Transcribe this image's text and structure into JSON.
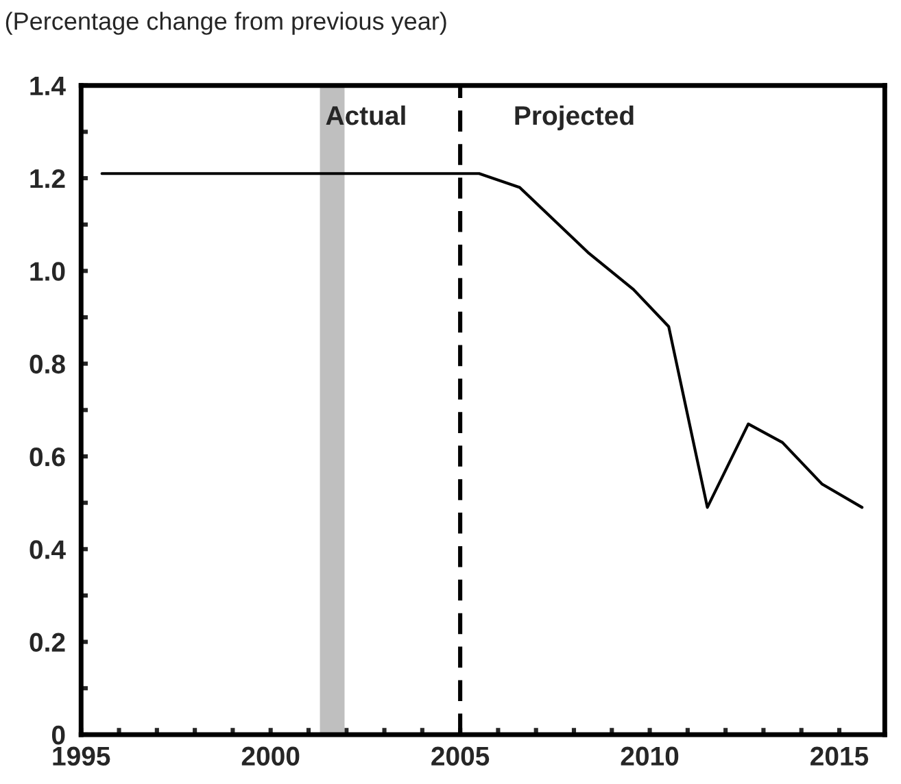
{
  "chart_data": {
    "type": "line",
    "title": "(Percentage change from previous year)",
    "x": [
      1995.55,
      2005.5,
      2006.57,
      2008.37,
      2009.57,
      2010.5,
      2011.52,
      2012.6,
      2013.5,
      2014.55,
      2015.6
    ],
    "series": [
      {
        "color": "#000000",
        "values": [
          1.21,
          1.21,
          1.18,
          1.04,
          0.96,
          0.88,
          0.49,
          0.67,
          0.63,
          0.54,
          0.49
        ]
      }
    ],
    "xlim": [
      1995,
      2016.2
    ],
    "ylim": [
      0,
      1.4
    ],
    "xticks": [
      {
        "value": 1995,
        "label": "1995"
      },
      {
        "value": 1996,
        "label": null
      },
      {
        "value": 1997,
        "label": null
      },
      {
        "value": 1998,
        "label": null
      },
      {
        "value": 1999,
        "label": null
      },
      {
        "value": 2000,
        "label": "2000"
      },
      {
        "value": 2001,
        "label": null
      },
      {
        "value": 2002,
        "label": null
      },
      {
        "value": 2003,
        "label": null
      },
      {
        "value": 2004,
        "label": null
      },
      {
        "value": 2005,
        "label": "2005"
      },
      {
        "value": 2006,
        "label": null
      },
      {
        "value": 2007,
        "label": null
      },
      {
        "value": 2008,
        "label": null
      },
      {
        "value": 2009,
        "label": null
      },
      {
        "value": 2010,
        "label": "2010"
      },
      {
        "value": 2011,
        "label": null
      },
      {
        "value": 2012,
        "label": null
      },
      {
        "value": 2013,
        "label": null
      },
      {
        "value": 2014,
        "label": null
      },
      {
        "value": 2015,
        "label": "2015"
      }
    ],
    "yticks": [
      {
        "value": 0,
        "label": "0"
      },
      {
        "value": 0.1,
        "label": null
      },
      {
        "value": 0.2,
        "label": "0.2"
      },
      {
        "value": 0.3,
        "label": null
      },
      {
        "value": 0.4,
        "label": "0.4"
      },
      {
        "value": 0.5,
        "label": null
      },
      {
        "value": 0.6,
        "label": "0.6"
      },
      {
        "value": 0.7,
        "label": null
      },
      {
        "value": 0.8,
        "label": "0.8"
      },
      {
        "value": 0.9,
        "label": null
      },
      {
        "value": 1.0,
        "label": "1.0"
      },
      {
        "value": 1.1,
        "label": null
      },
      {
        "value": 1.2,
        "label": "1.2"
      },
      {
        "value": 1.3,
        "label": null
      },
      {
        "value": 1.4,
        "label": "1.4"
      }
    ],
    "ref_lines": [
      {
        "axis": "x",
        "value": 2005,
        "label": null,
        "color": "#000000",
        "line_style": "dashed"
      }
    ],
    "bands": [
      {
        "axis": "x",
        "from": 2001.3,
        "to": 2001.95,
        "label": null,
        "color": "#bfbfbf"
      }
    ],
    "annotations": [
      "Actual",
      "Projected"
    ],
    "grid": false,
    "legend": false,
    "marker": "none",
    "line_style": "solid"
  }
}
